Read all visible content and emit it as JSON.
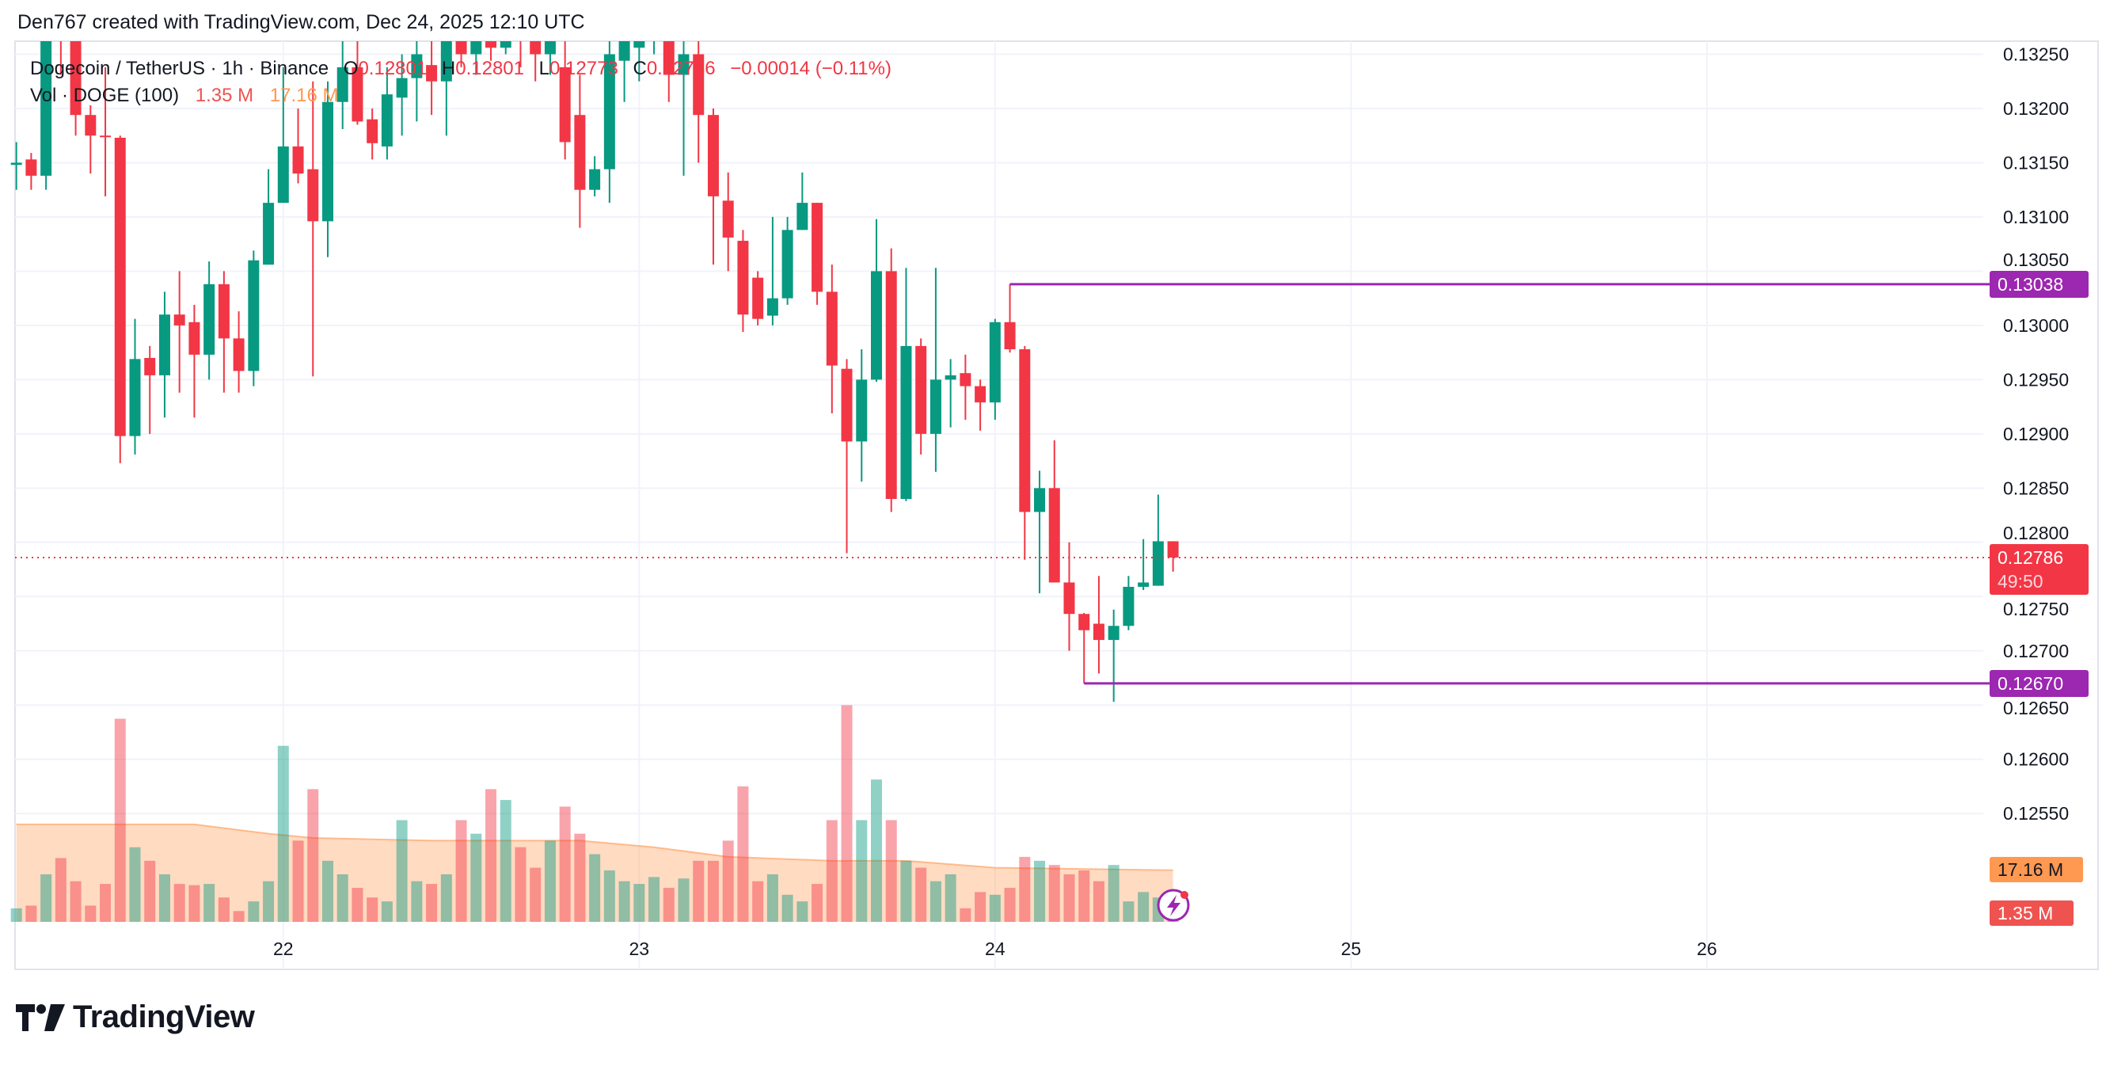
{
  "credit": "Den767 created with TradingView.com, Dec 24, 2025 12:10 UTC",
  "legend": {
    "symbol": "Dogecoin / TetherUS · 1h · Binance",
    "o_label": "O",
    "o": "0.12801",
    "h_label": "H",
    "h": "0.12801",
    "l_label": "L",
    "l": "0.12773",
    "c_label": "C",
    "c": "0.12786",
    "change": "−0.00014 (−0.11%)",
    "vol_label": "Vol · DOGE (100)",
    "vol": "1.35 M",
    "vol_ma": "17.16 M"
  },
  "colors": {
    "up": "#089981",
    "down": "#f23645",
    "level": "#9c27b0",
    "vol_ma": "#ff9850",
    "vol_tag": "#ef5350",
    "grid": "#f0f3fa"
  },
  "price_tags": {
    "resistance": "0.13038",
    "support": "0.12670",
    "last": "0.12786",
    "countdown": "49:50",
    "vol_ma": "17.16 M",
    "vol": "1.35 M"
  },
  "brand": "TradingView",
  "chart_data": {
    "type": "candlestick",
    "interval": "1h",
    "price_axis": {
      "ticks": [
        "0.12550",
        "0.12600",
        "0.12650",
        "0.12700",
        "0.12750",
        "0.12800",
        "0.12850",
        "0.12900",
        "0.12950",
        "0.13000",
        "0.13050",
        "0.13100",
        "0.13150",
        "0.13200",
        "0.13250"
      ]
    },
    "time_axis": {
      "ticks": [
        {
          "label": "22",
          "time": "2025-12-22T00:00"
        },
        {
          "label": "23",
          "time": "2025-12-23T00:00"
        },
        {
          "label": "24",
          "time": "2025-12-24T00:00"
        },
        {
          "label": "25",
          "time": "2025-12-25T00:00"
        },
        {
          "label": "26",
          "time": "2025-12-26T00:00"
        }
      ]
    },
    "start_time": "2025-12-21T06:00",
    "ohlc_fields": [
      "open",
      "high",
      "low",
      "close"
    ],
    "candles": [
      [
        0.13148,
        0.13169,
        0.13125,
        0.1315
      ],
      [
        0.13153,
        0.13159,
        0.13125,
        0.13138
      ],
      [
        0.13138,
        0.13275,
        0.13125,
        0.13269
      ],
      [
        0.13281,
        0.13288,
        0.13231,
        0.13269
      ],
      [
        0.13263,
        0.13269,
        0.13175,
        0.13194
      ],
      [
        0.13194,
        0.13203,
        0.1314,
        0.13175
      ],
      [
        0.13175,
        0.13238,
        0.13119,
        0.13174
      ],
      [
        0.13173,
        0.13175,
        0.12873,
        0.12898
      ],
      [
        0.12898,
        0.13006,
        0.12881,
        0.12969
      ],
      [
        0.1297,
        0.12981,
        0.129,
        0.12954
      ],
      [
        0.12954,
        0.13031,
        0.12915,
        0.1301
      ],
      [
        0.1301,
        0.1305,
        0.12938,
        0.13
      ],
      [
        0.13003,
        0.13019,
        0.12915,
        0.12973
      ],
      [
        0.12973,
        0.13059,
        0.1295,
        0.13038
      ],
      [
        0.13038,
        0.1305,
        0.12938,
        0.12988
      ],
      [
        0.12988,
        0.13013,
        0.12938,
        0.12958
      ],
      [
        0.12958,
        0.13069,
        0.12944,
        0.1306
      ],
      [
        0.13056,
        0.13144,
        0.13056,
        0.13113
      ],
      [
        0.13113,
        0.13238,
        0.13113,
        0.13165
      ],
      [
        0.13165,
        0.132,
        0.13131,
        0.1314
      ],
      [
        0.13144,
        0.13225,
        0.12953,
        0.13096
      ],
      [
        0.13096,
        0.13225,
        0.13063,
        0.13206
      ],
      [
        0.13206,
        0.13263,
        0.13181,
        0.13238
      ],
      [
        0.13238,
        0.13275,
        0.13185,
        0.13188
      ],
      [
        0.1319,
        0.132,
        0.13153,
        0.13168
      ],
      [
        0.13165,
        0.13238,
        0.13153,
        0.13213
      ],
      [
        0.1321,
        0.1325,
        0.13175,
        0.13228
      ],
      [
        0.13228,
        0.13265,
        0.13188,
        0.1325
      ],
      [
        0.1324,
        0.13263,
        0.13194,
        0.13225
      ],
      [
        0.13225,
        0.13281,
        0.13175,
        0.13263
      ],
      [
        0.13263,
        0.13281,
        0.13238,
        0.1325
      ],
      [
        0.1325,
        0.13281,
        0.13231,
        0.13269
      ],
      [
        0.13269,
        0.13288,
        0.13244,
        0.13256
      ],
      [
        0.13256,
        0.13288,
        0.1325,
        0.13275
      ],
      [
        0.13275,
        0.13294,
        0.13238,
        0.13263
      ],
      [
        0.13263,
        0.13281,
        0.13225,
        0.1325
      ],
      [
        0.1325,
        0.13275,
        0.13231,
        0.13263
      ],
      [
        0.13238,
        0.13263,
        0.13153,
        0.13169
      ],
      [
        0.13194,
        0.13231,
        0.1309,
        0.13125
      ],
      [
        0.13125,
        0.13156,
        0.13119,
        0.13144
      ],
      [
        0.13144,
        0.13263,
        0.13113,
        0.1325
      ],
      [
        0.13244,
        0.13275,
        0.13206,
        0.13263
      ],
      [
        0.13256,
        0.13275,
        0.13225,
        0.13265
      ],
      [
        0.13263,
        0.13281,
        0.1325,
        0.13269
      ],
      [
        0.13269,
        0.13281,
        0.13206,
        0.13231
      ],
      [
        0.13231,
        0.13269,
        0.13138,
        0.1325
      ],
      [
        0.1325,
        0.13275,
        0.1315,
        0.13194
      ],
      [
        0.13194,
        0.132,
        0.13056,
        0.13119
      ],
      [
        0.13115,
        0.13141,
        0.1305,
        0.13081
      ],
      [
        0.13078,
        0.13088,
        0.12994,
        0.1301
      ],
      [
        0.13044,
        0.1305,
        0.13,
        0.13006
      ],
      [
        0.13009,
        0.131,
        0.13,
        0.13025
      ],
      [
        0.13025,
        0.131,
        0.13019,
        0.13088
      ],
      [
        0.13088,
        0.13141,
        0.13088,
        0.13113
      ],
      [
        0.13113,
        0.13113,
        0.13019,
        0.13031
      ],
      [
        0.13031,
        0.13056,
        0.12919,
        0.12963
      ],
      [
        0.1296,
        0.12969,
        0.1279,
        0.12893
      ],
      [
        0.12893,
        0.12978,
        0.12856,
        0.1295
      ],
      [
        0.1295,
        0.13098,
        0.12948,
        0.1305
      ],
      [
        0.1305,
        0.13071,
        0.12828,
        0.1284
      ],
      [
        0.1284,
        0.13053,
        0.12838,
        0.12981
      ],
      [
        0.12981,
        0.12988,
        0.12881,
        0.129
      ],
      [
        0.129,
        0.13053,
        0.12865,
        0.1295
      ],
      [
        0.1295,
        0.12969,
        0.12906,
        0.12954
      ],
      [
        0.12956,
        0.12973,
        0.12913,
        0.12944
      ],
      [
        0.12944,
        0.1295,
        0.12903,
        0.12929
      ],
      [
        0.12929,
        0.13006,
        0.12913,
        0.13003
      ],
      [
        0.13003,
        0.13038,
        0.12975,
        0.12978
      ],
      [
        0.12978,
        0.12981,
        0.12784,
        0.12828
      ],
      [
        0.12828,
        0.12866,
        0.12753,
        0.1285
      ],
      [
        0.1285,
        0.12894,
        0.12763,
        0.12763
      ],
      [
        0.12763,
        0.128,
        0.127,
        0.12734
      ],
      [
        0.12734,
        0.12735,
        0.1267,
        0.12719
      ],
      [
        0.12725,
        0.12769,
        0.12679,
        0.1271
      ],
      [
        0.1271,
        0.12738,
        0.12653,
        0.12723
      ],
      [
        0.12723,
        0.12769,
        0.12719,
        0.12759
      ],
      [
        0.12759,
        0.12803,
        0.12756,
        0.12763
      ],
      [
        0.1276,
        0.12844,
        0.1276,
        0.12801
      ],
      [
        0.12801,
        0.12801,
        0.12773,
        0.12786
      ]
    ],
    "volume_millions": [
      4.5,
      5.4,
      15.8,
      21.2,
      13.5,
      5.4,
      12.6,
      67.5,
      24.8,
      20.3,
      15.8,
      12.6,
      12.2,
      12.6,
      8.1,
      3.6,
      6.8,
      13.5,
      58.5,
      27,
      44.1,
      20.3,
      15.8,
      11.3,
      8.1,
      6.8,
      33.8,
      13.5,
      12.6,
      15.8,
      33.8,
      29.3,
      44.1,
      40.5,
      24.8,
      18,
      27,
      38.3,
      29.3,
      22.5,
      17.1,
      13.5,
      12.6,
      14.9,
      11.3,
      14.4,
      20.3,
      20.3,
      27,
      45,
      13.5,
      15.8,
      9,
      6.8,
      12.6,
      33.8,
      72,
      33.8,
      47.3,
      33.8,
      20.3,
      18,
      13.5,
      15.8,
      4.5,
      9.9,
      9,
      11.3,
      21.6,
      20.3,
      18.9,
      15.8,
      17.1,
      13.5,
      18.9,
      6.8,
      9.9,
      8.1,
      1.35
    ],
    "volume_ma_100": [
      [
        "2025-12-21T06:00",
        32.4
      ],
      [
        "2025-12-21T18:00",
        32.4
      ],
      [
        "2025-12-21T23:00",
        29.3
      ],
      [
        "2025-12-22T02:00",
        27.9
      ],
      [
        "2025-12-22T10:00",
        27
      ],
      [
        "2025-12-22T20:00",
        27
      ],
      [
        "2025-12-23T01:00",
        24.8
      ],
      [
        "2025-12-23T06:00",
        21.6
      ],
      [
        "2025-12-23T13:00",
        20.3
      ],
      [
        "2025-12-23T18:00",
        20.3
      ],
      [
        "2025-12-24T00:00",
        18
      ],
      [
        "2025-12-24T12:00",
        17.16
      ]
    ],
    "horizontal_levels": [
      {
        "price": 0.13038,
        "from": "2025-12-24T01:00"
      },
      {
        "price": 0.1267,
        "from": "2025-12-24T06:00"
      }
    ],
    "last_price": 0.12786,
    "grid": true
  }
}
